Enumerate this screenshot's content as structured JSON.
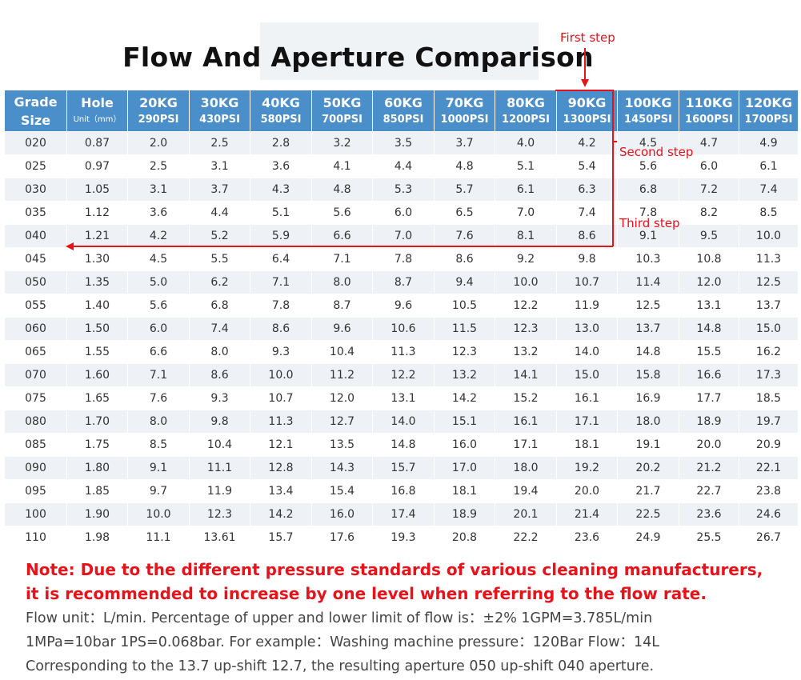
{
  "title": "Flow And Aperture Comparison",
  "table": {
    "headers": [
      {
        "l1": "Grade",
        "l2": "Size"
      },
      {
        "l1": "Hole",
        "l2": "Unit（mm）"
      },
      {
        "l1": "20KG",
        "l2": "290PSI"
      },
      {
        "l1": "30KG",
        "l2": "430PSI"
      },
      {
        "l1": "40KG",
        "l2": "580PSI"
      },
      {
        "l1": "50KG",
        "l2": "700PSI"
      },
      {
        "l1": "60KG",
        "l2": "850PSI"
      },
      {
        "l1": "70KG",
        "l2": "1000PSI"
      },
      {
        "l1": "80KG",
        "l2": "1200PSI"
      },
      {
        "l1": "90KG",
        "l2": "1300PSI"
      },
      {
        "l1": "100KG",
        "l2": "1450PSI"
      },
      {
        "l1": "110KG",
        "l2": "1600PSI"
      },
      {
        "l1": "120KG",
        "l2": "1700PSI"
      }
    ],
    "rows": [
      [
        "020",
        "0.87",
        "2.0",
        "2.5",
        "2.8",
        "3.2",
        "3.5",
        "3.7",
        "4.0",
        "4.2",
        "4.5",
        "4.7",
        "4.9"
      ],
      [
        "025",
        "0.97",
        "2.5",
        "3.1",
        "3.6",
        "4.1",
        "4.4",
        "4.8",
        "5.1",
        "5.4",
        "5.6",
        "6.0",
        "6.1"
      ],
      [
        "030",
        "1.05",
        "3.1",
        "3.7",
        "4.3",
        "4.8",
        "5.3",
        "5.7",
        "6.1",
        "6.3",
        "6.8",
        "7.2",
        "7.4"
      ],
      [
        "035",
        "1.12",
        "3.6",
        "4.4",
        "5.1",
        "5.6",
        "6.0",
        "6.5",
        "7.0",
        "7.4",
        "7.8",
        "8.2",
        "8.5"
      ],
      [
        "040",
        "1.21",
        "4.2",
        "5.2",
        "5.9",
        "6.6",
        "7.0",
        "7.6",
        "8.1",
        "8.6",
        "9.1",
        "9.5",
        "10.0"
      ],
      [
        "045",
        "1.30",
        "4.5",
        "5.5",
        "6.4",
        "7.1",
        "7.8",
        "8.6",
        "9.2",
        "9.8",
        "10.3",
        "10.8",
        "11.3"
      ],
      [
        "050",
        "1.35",
        "5.0",
        "6.2",
        "7.1",
        "8.0",
        "8.7",
        "9.4",
        "10.0",
        "10.7",
        "11.4",
        "12.0",
        "12.5"
      ],
      [
        "055",
        "1.40",
        "5.6",
        "6.8",
        "7.8",
        "8.7",
        "9.6",
        "10.5",
        "12.2",
        "11.9",
        "12.5",
        "13.1",
        "13.7"
      ],
      [
        "060",
        "1.50",
        "6.0",
        "7.4",
        "8.6",
        "9.6",
        "10.6",
        "11.5",
        "12.3",
        "13.0",
        "13.7",
        "14.8",
        "15.0"
      ],
      [
        "065",
        "1.55",
        "6.6",
        "8.0",
        "9.3",
        "10.4",
        "11.3",
        "12.3",
        "13.2",
        "14.0",
        "14.8",
        "15.5",
        "16.2"
      ],
      [
        "070",
        "1.60",
        "7.1",
        "8.6",
        "10.0",
        "11.2",
        "12.2",
        "13.2",
        "14.1",
        "15.0",
        "15.8",
        "16.6",
        "17.3"
      ],
      [
        "075",
        "1.65",
        "7.6",
        "9.3",
        "10.7",
        "12.0",
        "13.1",
        "14.2",
        "15.2",
        "16.1",
        "16.9",
        "17.7",
        "18.5"
      ],
      [
        "080",
        "1.70",
        "8.0",
        "9.8",
        "11.3",
        "12.7",
        "14.0",
        "15.1",
        "16.1",
        "17.1",
        "18.0",
        "18.9",
        "19.7"
      ],
      [
        "085",
        "1.75",
        "8.5",
        "10.4",
        "12.1",
        "13.5",
        "14.8",
        "16.0",
        "17.1",
        "18.1",
        "19.1",
        "20.0",
        "20.9"
      ],
      [
        "090",
        "1.80",
        "9.1",
        "11.1",
        "12.8",
        "14.3",
        "15.7",
        "17.0",
        "18.0",
        "19.2",
        "20.2",
        "21.2",
        "22.1"
      ],
      [
        "095",
        "1.85",
        "9.7",
        "11.9",
        "13.4",
        "15.4",
        "16.8",
        "18.1",
        "19.4",
        "20.0",
        "21.7",
        "22.7",
        "23.8"
      ],
      [
        "100",
        "1.90",
        "10.0",
        "12.3",
        "14.2",
        "16.0",
        "17.4",
        "18.9",
        "20.1",
        "21.4",
        "22.5",
        "23.6",
        "24.6"
      ],
      [
        "110",
        "1.98",
        "11.1",
        "13.61",
        "15.7",
        "17.6",
        "19.3",
        "20.8",
        "22.2",
        "23.6",
        "24.9",
        "25.5",
        "26.7"
      ]
    ]
  },
  "steps": {
    "first": "First step",
    "second": "Second step",
    "third": "Third step"
  },
  "colors": {
    "header_bg": "#4a8fc9",
    "accent_red": "#e8121a",
    "row_alt": "#eef1f5"
  },
  "note": {
    "line1": "Note: Due to the different pressure standards of various cleaning manufacturers,",
    "line2": "it is recommended to increase by one level when referring to the flow rate."
  },
  "info": {
    "line1": "Flow unit：L/min. Percentage of upper and lower limit of flow is：±2%  1GPM=3.785L/min",
    "line2": "1MPa=10bar  1PS=0.068bar. For example：Washing machine pressure：120Bar  Flow：14L",
    "line3": "Corresponding to the 13.7 up-shift 12.7, the resulting aperture 050 up-shift 040 aperture."
  }
}
